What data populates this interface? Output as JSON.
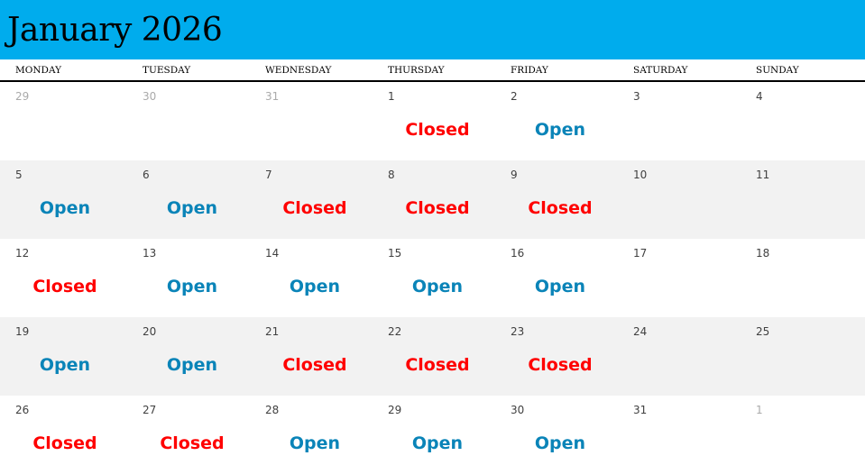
{
  "title": "January 2026",
  "colors": {
    "header": "#00aced",
    "open": "#0a84b8",
    "closed": "#ff0000"
  },
  "weekdays": [
    "MONDAY",
    "TUESDAY",
    "WEDNESDAY",
    "THURSDAY",
    "FRIDAY",
    "SATURDAY",
    "SUNDAY"
  ],
  "weeks": [
    [
      {
        "day": "29",
        "other": true,
        "status": ""
      },
      {
        "day": "30",
        "other": true,
        "status": ""
      },
      {
        "day": "31",
        "other": true,
        "status": ""
      },
      {
        "day": "1",
        "status": "Closed"
      },
      {
        "day": "2",
        "status": "Open"
      },
      {
        "day": "3",
        "status": ""
      },
      {
        "day": "4",
        "status": ""
      }
    ],
    [
      {
        "day": "5",
        "status": "Open"
      },
      {
        "day": "6",
        "status": "Open"
      },
      {
        "day": "7",
        "status": "Closed"
      },
      {
        "day": "8",
        "status": "Closed"
      },
      {
        "day": "9",
        "status": "Closed"
      },
      {
        "day": "10",
        "status": ""
      },
      {
        "day": "11",
        "status": ""
      }
    ],
    [
      {
        "day": "12",
        "status": "Closed"
      },
      {
        "day": "13",
        "status": "Open"
      },
      {
        "day": "14",
        "status": "Open"
      },
      {
        "day": "15",
        "status": "Open"
      },
      {
        "day": "16",
        "status": "Open"
      },
      {
        "day": "17",
        "status": ""
      },
      {
        "day": "18",
        "status": ""
      }
    ],
    [
      {
        "day": "19",
        "status": "Open"
      },
      {
        "day": "20",
        "status": "Open"
      },
      {
        "day": "21",
        "status": "Closed"
      },
      {
        "day": "22",
        "status": "Closed"
      },
      {
        "day": "23",
        "status": "Closed"
      },
      {
        "day": "24",
        "status": ""
      },
      {
        "day": "25",
        "status": ""
      }
    ],
    [
      {
        "day": "26",
        "status": "Closed"
      },
      {
        "day": "27",
        "status": "Closed"
      },
      {
        "day": "28",
        "status": "Open"
      },
      {
        "day": "29",
        "status": "Open"
      },
      {
        "day": "30",
        "status": "Open"
      },
      {
        "day": "31",
        "status": ""
      },
      {
        "day": "1",
        "other": true,
        "status": ""
      }
    ]
  ]
}
